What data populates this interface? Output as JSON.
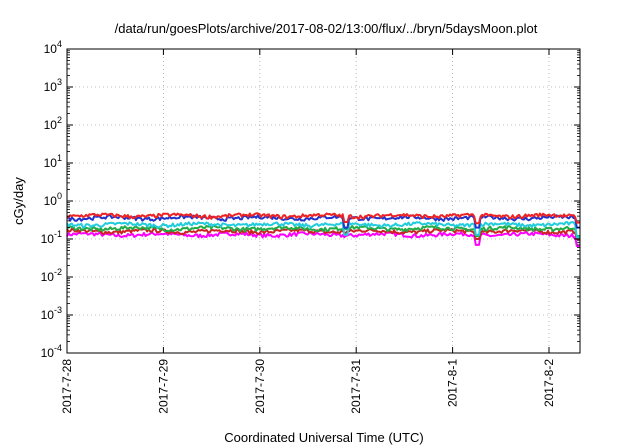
{
  "chart_data": {
    "type": "line",
    "title": "/data/run/goesPlots/archive/2017-08-02/13:00/flux/../bryn/5daysMoon.plot",
    "xlabel": "Coordinated Universal Time (UTC)",
    "ylabel": "cGy/day",
    "yscale": "log",
    "ylim": [
      0.0001,
      10000
    ],
    "xlim": [
      "2017-07-28 00:00",
      "2017-08-02 13:00"
    ],
    "x_tick_labels": [
      "2017-7-28",
      "2017-7-29",
      "2017-7-30",
      "2017-7-31",
      "2017-8-1",
      "2017-8-2"
    ],
    "y_ticks": [
      {
        "base": "10",
        "exp": "4"
      },
      {
        "base": "10",
        "exp": "3"
      },
      {
        "base": "10",
        "exp": "2"
      },
      {
        "base": "10",
        "exp": "1"
      },
      {
        "base": "10",
        "exp": "0"
      },
      {
        "base": "10",
        "exp": "-1"
      },
      {
        "base": "10",
        "exp": "-2"
      },
      {
        "base": "10",
        "exp": "-3"
      },
      {
        "base": "10",
        "exp": "-4"
      }
    ],
    "grid": true,
    "series": [
      {
        "color": "#ff00ff",
        "level": 0.13,
        "dips": [
          [
            4.25,
            0.07
          ],
          [
            5.3,
            0.065
          ],
          [
            5.45,
            0.08
          ]
        ]
      },
      {
        "color": "#cc2222",
        "level": 0.16,
        "dips": [
          [
            4.25,
            0.1
          ],
          [
            5.3,
            0.1
          ],
          [
            5.45,
            0.11
          ]
        ]
      },
      {
        "color": "#22aa44",
        "level": 0.19,
        "dips": [
          [
            4.25,
            0.12
          ],
          [
            5.3,
            0.12
          ],
          [
            5.45,
            0.13
          ]
        ]
      },
      {
        "color": "#22ccdd",
        "level": 0.24,
        "dips": [
          [
            2.9,
            0.13
          ],
          [
            4.25,
            0.13
          ],
          [
            5.3,
            0.11
          ],
          [
            5.45,
            0.12
          ]
        ]
      },
      {
        "color": "#2233cc",
        "level": 0.36,
        "dips": [
          [
            2.9,
            0.2
          ],
          [
            4.25,
            0.2
          ],
          [
            5.3,
            0.2
          ],
          [
            5.45,
            0.22
          ]
        ]
      },
      {
        "color": "#ee2222",
        "level": 0.41,
        "dips": [
          [
            2.9,
            0.28
          ],
          [
            4.25,
            0.26
          ],
          [
            5.3,
            0.27
          ],
          [
            5.45,
            0.29
          ]
        ]
      }
    ]
  }
}
